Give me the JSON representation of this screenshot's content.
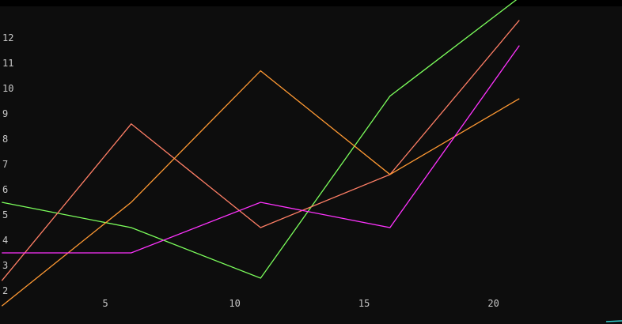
{
  "chart_data": {
    "type": "line",
    "title": "",
    "xlabel": "",
    "ylabel": "",
    "x": [
      1,
      6,
      11,
      16,
      21
    ],
    "xlim": [
      0,
      25
    ],
    "ylim": [
      1.5,
      13.4
    ],
    "x_ticks": [
      5,
      10,
      15,
      20
    ],
    "y_ticks": [
      2,
      3,
      4,
      5,
      6,
      7,
      8,
      9,
      10,
      11,
      12
    ],
    "grid": false,
    "legend": "none",
    "background": "#0d0d0d",
    "series": [
      {
        "color": "#7cff5c",
        "values": [
          5.5,
          4.5,
          2.5,
          9.7,
          13.6
        ]
      },
      {
        "color": "#ff7f66",
        "values": [
          2.4,
          8.6,
          4.5,
          6.6,
          12.7
        ]
      },
      {
        "color": "#ff9933",
        "values": [
          1.4,
          5.5,
          10.7,
          6.6,
          9.6
        ]
      },
      {
        "color": "#ff33ff",
        "values": [
          3.5,
          3.5,
          5.5,
          4.5,
          11.7
        ]
      }
    ]
  }
}
